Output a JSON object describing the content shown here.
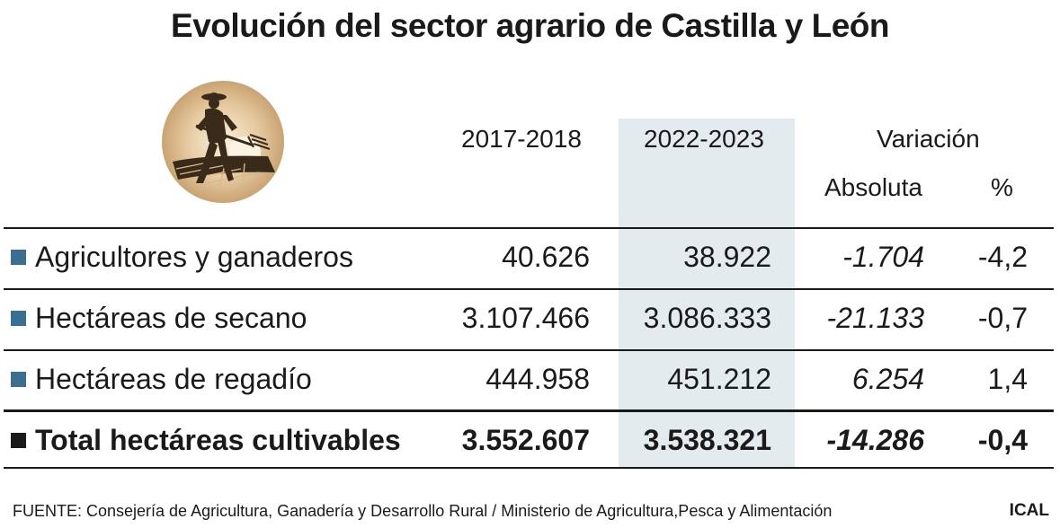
{
  "title": "Evolución del sector agrario de Castilla y León",
  "headers": {
    "period1": "2017-2018",
    "period2": "2022-2023",
    "variation": "Variación",
    "absolute": "Absoluta",
    "percent": "%"
  },
  "rows": [
    {
      "label": "Agricultores y ganaderos",
      "v2017": "40.626",
      "v2022": "38.922",
      "abs": "-1.704",
      "pct": "-4,2"
    },
    {
      "label": "Hectáreas de secano",
      "v2017": "3.107.466",
      "v2022": "3.086.333",
      "abs": "-21.133",
      "pct": "-0,7"
    },
    {
      "label": "Hectáreas de regadío",
      "v2017": "444.958",
      "v2022": "451.212",
      "abs": "6.254",
      "pct": "1,4"
    },
    {
      "label": "Total hectáreas cultivables",
      "v2017": "3.552.607",
      "v2022": "3.538.321",
      "abs": "-14.286",
      "pct": "-0,4"
    }
  ],
  "footer": {
    "source": "FUENTE: Consejería de Agricultura, Ganadería y Desarrollo Rural / Ministerio de Agricultura,Pesca y Alimentación",
    "brand": "ICAL"
  },
  "colors": {
    "highlight_column": "#e3ebee",
    "row_marker": "#3c6e91",
    "logo_circle": "#d9b98a"
  },
  "icons": {
    "logo": "farmer-with-pitchfork-icon"
  },
  "chart_data": {
    "type": "table",
    "title": "Evolución del sector agrario de Castilla y León",
    "columns": [
      "2017-2018",
      "2022-2023",
      "Variación Absoluta",
      "Variación %"
    ],
    "rows": [
      {
        "name": "Agricultores y ganaderos",
        "values": [
          40626,
          38922,
          -1704,
          -4.2
        ]
      },
      {
        "name": "Hectáreas de secano",
        "values": [
          3107466,
          3086333,
          -21133,
          -0.7
        ]
      },
      {
        "name": "Hectáreas de regadío",
        "values": [
          444958,
          451212,
          6254,
          1.4
        ]
      },
      {
        "name": "Total hectáreas cultivables",
        "values": [
          3552607,
          3538321,
          -14286,
          -0.4
        ]
      }
    ]
  }
}
